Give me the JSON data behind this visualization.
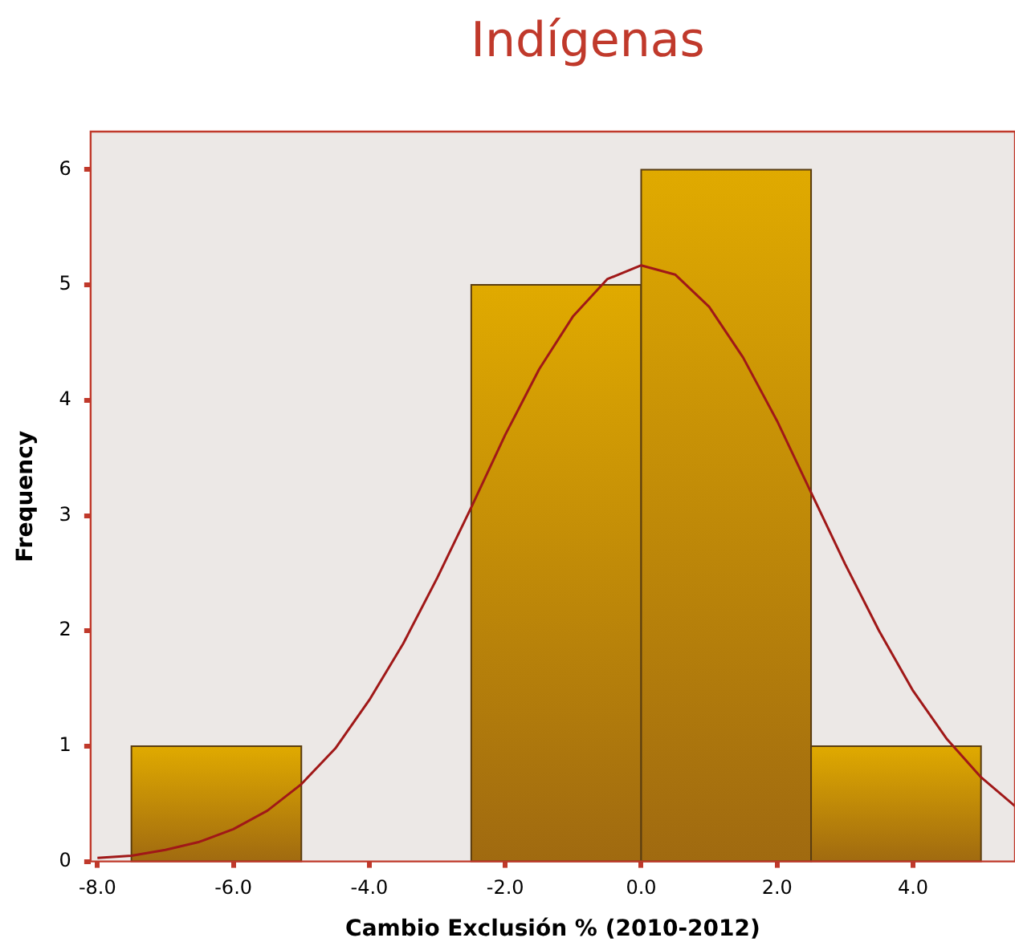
{
  "chart_data": {
    "type": "histogram",
    "title": "Indígenas",
    "xlabel": "Cambio Exclusión % (2010-2012)",
    "ylabel": "Frequency",
    "bins": [
      -7.5,
      -5,
      -2.5,
      0,
      2.5,
      5
    ],
    "values": [
      1,
      0,
      5,
      6,
      1
    ],
    "color": "#e0aa00",
    "series": [
      {
        "type": "line",
        "color": "#a01818",
        "x": [
          -8,
          -7.5,
          -7,
          -6.5,
          -6,
          -5.5,
          -5,
          -4.5,
          -4,
          -3.5,
          -3,
          -2.5,
          -2,
          -1.5,
          -1,
          -0.5,
          0,
          0.5,
          1,
          1.5,
          2,
          2.5,
          3,
          3.5,
          4,
          4.5,
          5,
          5.5
        ],
        "values": [
          0.03,
          0.05,
          0.1,
          0.17,
          0.28,
          0.44,
          0.67,
          0.98,
          1.4,
          1.89,
          2.46,
          3.07,
          3.7,
          4.27,
          4.73,
          5.05,
          5.17,
          5.09,
          4.81,
          4.37,
          3.82,
          3.2,
          2.58,
          2.0,
          1.48,
          1.06,
          0.73,
          0.48
        ]
      }
    ],
    "xlim": [
      -8.1,
      5.5
    ],
    "xticks": [
      {
        "value": -8,
        "label": "-8.0"
      },
      {
        "value": -6,
        "label": "-6.0"
      },
      {
        "value": -4,
        "label": "-4.0"
      },
      {
        "value": -2,
        "label": "-2.0"
      },
      {
        "value": 0,
        "label": "0.0"
      },
      {
        "value": 2,
        "label": "2.0"
      },
      {
        "value": 4,
        "label": "4.0"
      }
    ],
    "ylim": [
      0,
      6.33
    ],
    "yticks": [
      0,
      1,
      2,
      3,
      4,
      5,
      6
    ],
    "grid": false,
    "legend": false
  }
}
